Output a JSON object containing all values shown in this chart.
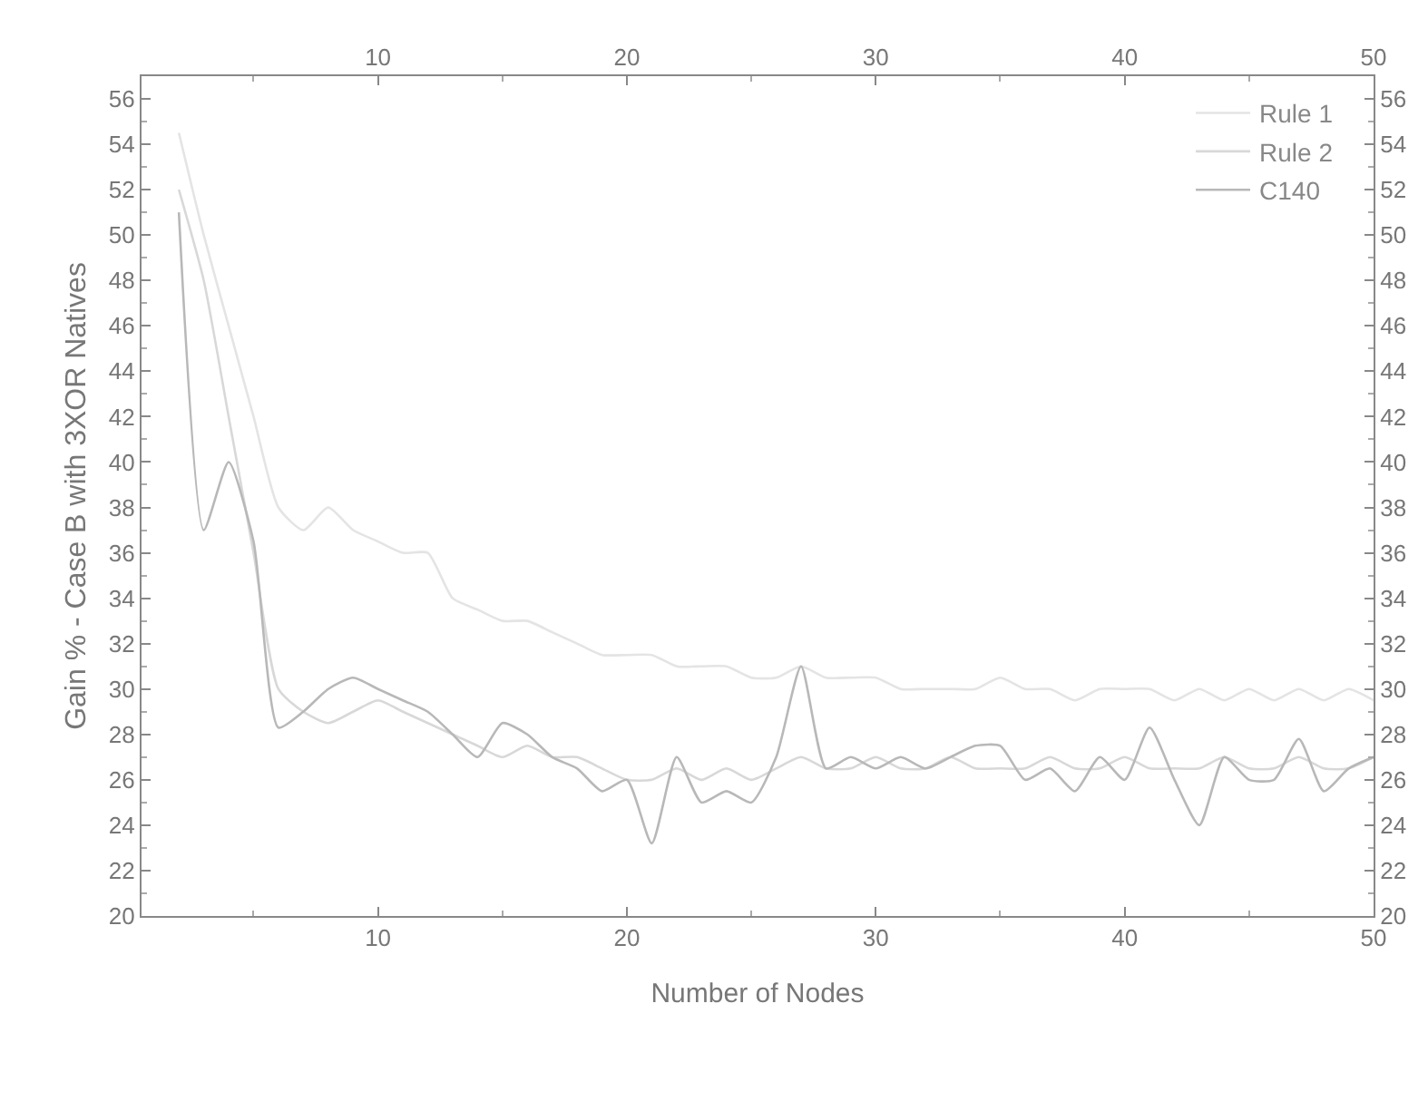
{
  "chart_data": {
    "type": "line",
    "xlabel": "Number of Nodes",
    "ylabel": "Gain % - Case B with 3XOR Natives",
    "x": [
      2,
      3,
      4,
      5,
      6,
      7,
      8,
      9,
      10,
      11,
      12,
      13,
      14,
      15,
      16,
      17,
      18,
      19,
      20,
      21,
      22,
      23,
      24,
      25,
      26,
      27,
      28,
      29,
      30,
      31,
      32,
      33,
      34,
      35,
      36,
      37,
      38,
      39,
      40,
      41,
      42,
      43,
      44,
      45,
      46,
      47,
      48,
      49,
      50
    ],
    "series": [
      {
        "name": "Rule 1",
        "color": "#e4e4e4",
        "values": [
          54.5,
          50,
          46,
          42,
          38,
          37,
          38,
          37,
          36.5,
          36,
          36,
          34,
          33.5,
          33,
          33,
          32.5,
          32,
          31.5,
          31.5,
          31.5,
          31,
          31,
          31,
          30.5,
          30.5,
          31,
          30.5,
          30.5,
          30.5,
          30,
          30,
          30,
          30,
          30.5,
          30,
          30,
          29.5,
          30,
          30,
          30,
          29.5,
          30,
          29.5,
          30,
          29.5,
          30,
          29.5,
          30,
          29.5
        ]
      },
      {
        "name": "Rule 2",
        "color": "#d8d8d8",
        "values": [
          52,
          48,
          42,
          36,
          30,
          29,
          28.5,
          29,
          29.5,
          29,
          28.5,
          28,
          27.5,
          27,
          27.5,
          27,
          27,
          26.5,
          26,
          26,
          26.5,
          26,
          26.5,
          26,
          26.5,
          27,
          26.5,
          26.5,
          27,
          26.5,
          26.5,
          27,
          26.5,
          26.5,
          26.5,
          27,
          26.5,
          26.5,
          27,
          26.5,
          26.5,
          26.5,
          27,
          26.5,
          26.5,
          27,
          26.5,
          26.5,
          27
        ]
      },
      {
        "name": "C140",
        "color": "#b8b8b8",
        "values": [
          51,
          37,
          40,
          36.5,
          28.3,
          29,
          30,
          30.5,
          30,
          29.5,
          29,
          28,
          27,
          28.5,
          28,
          27,
          26.5,
          25.5,
          26,
          23.2,
          27,
          25,
          25.5,
          25,
          27,
          31,
          26.5,
          27,
          26.5,
          27,
          26.5,
          27,
          27.5,
          27.5,
          26,
          26.5,
          25.5,
          27,
          26,
          28.3,
          26,
          24,
          27,
          26,
          26,
          27.8,
          25.5,
          26.5,
          27
        ]
      }
    ],
    "xlim": [
      0.5,
      50
    ],
    "xticks": [
      10,
      20,
      30,
      40,
      50
    ],
    "x2lim": [
      0.5,
      50
    ],
    "x2ticks": [
      10,
      20,
      30,
      40,
      50
    ],
    "ylim": [
      20,
      57
    ],
    "yticks": [
      20,
      22,
      24,
      26,
      28,
      30,
      32,
      34,
      36,
      38,
      40,
      42,
      44,
      46,
      48,
      50,
      52,
      54,
      56
    ],
    "y2lim": [
      20,
      57
    ],
    "y2ticks": [
      20,
      22,
      24,
      26,
      28,
      30,
      32,
      34,
      36,
      38,
      40,
      42,
      44,
      46,
      48,
      50,
      52,
      54,
      56
    ],
    "grid": false,
    "legend": "top right",
    "marker": "none",
    "line_style": "solid"
  }
}
